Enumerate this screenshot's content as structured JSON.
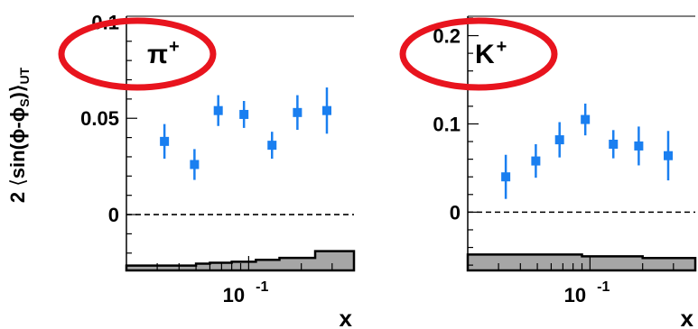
{
  "ylabel": {
    "prefix": "2 ",
    "lang": "⟨",
    "expr": "sin(ϕ-ϕ",
    "sub_s": "S",
    "close": ")⟩",
    "sub_ut": "UT"
  },
  "colors": {
    "points": "#1a7ff0",
    "ellipse": "#e8141e",
    "band_fill": "#a6a6a6",
    "zero_line": "#000000"
  },
  "chart_data": [
    {
      "type": "scatter",
      "panel_label": "π",
      "panel_label_sup": "+",
      "xlabel": "x",
      "x_tick_label": "10",
      "x_tick_exponent": "-1",
      "x_scale": "log",
      "xlim": [
        0.02,
        0.4
      ],
      "ylim": [
        -0.029,
        0.103
      ],
      "y_tick_labels": [
        "0",
        "0.05",
        "0.1"
      ],
      "y_tick_values": [
        0,
        0.05,
        0.1
      ],
      "x": [
        0.033,
        0.049,
        0.067,
        0.094,
        0.136,
        0.19,
        0.28
      ],
      "values": [
        0.038,
        0.026,
        0.054,
        0.052,
        0.036,
        0.053,
        0.054
      ],
      "errors": [
        0.009,
        0.008,
        0.008,
        0.007,
        0.007,
        0.009,
        0.012
      ],
      "systematic_band": {
        "x": [
          0.02,
          0.04,
          0.05,
          0.06,
          0.08,
          0.11,
          0.15,
          0.24,
          0.4
        ],
        "upper": [
          -0.0265,
          -0.0265,
          -0.0255,
          -0.025,
          -0.0245,
          -0.0235,
          -0.0225,
          -0.019,
          -0.019
        ],
        "lower": [
          -0.029,
          -0.029,
          -0.029,
          -0.029,
          -0.029,
          -0.029,
          -0.029,
          -0.029,
          -0.029
        ]
      },
      "zero_line": true
    },
    {
      "type": "scatter",
      "panel_label": "K",
      "panel_label_sup": "+",
      "xlabel": "x",
      "x_tick_label": "10",
      "x_tick_exponent": "-1",
      "x_scale": "log",
      "xlim": [
        0.02,
        0.4
      ],
      "ylim": [
        -0.066,
        0.222
      ],
      "y_tick_labels": [
        "0",
        "0.1",
        "0.2"
      ],
      "y_tick_values": [
        0,
        0.1,
        0.2
      ],
      "x": [
        0.033,
        0.049,
        0.067,
        0.094,
        0.136,
        0.19,
        0.28
      ],
      "values": [
        0.04,
        0.058,
        0.082,
        0.105,
        0.077,
        0.075,
        0.064
      ],
      "errors": [
        0.025,
        0.019,
        0.02,
        0.018,
        0.016,
        0.022,
        0.028
      ],
      "systematic_band": {
        "x": [
          0.02,
          0.09,
          0.2,
          0.4
        ],
        "upper": [
          -0.048,
          -0.05,
          -0.052,
          -0.054
        ],
        "lower": [
          -0.066,
          -0.066,
          -0.066,
          -0.066
        ]
      },
      "zero_line": true
    }
  ]
}
